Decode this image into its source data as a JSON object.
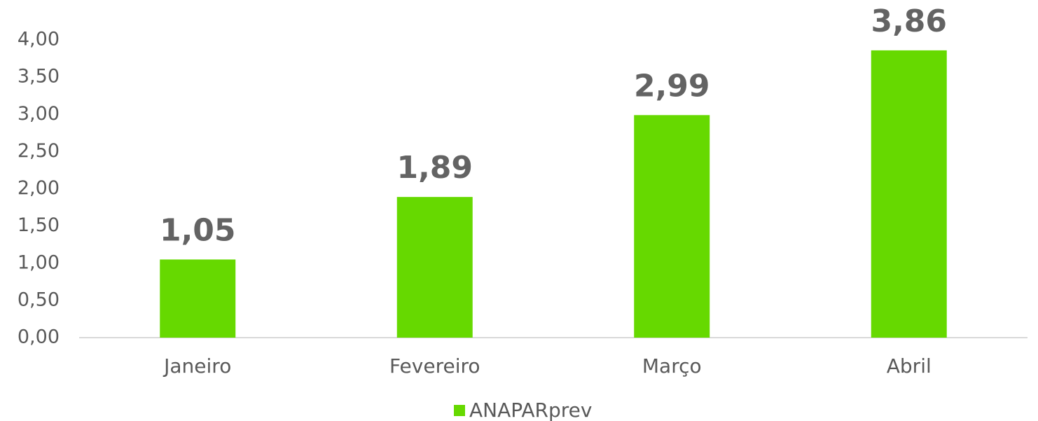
{
  "chart_data": {
    "type": "bar",
    "categories": [
      "Janeiro",
      "Fevereiro",
      "Março",
      "Abril"
    ],
    "series": [
      {
        "name": "ANAPARprev",
        "color": "#66d900",
        "values": [
          1.05,
          1.89,
          2.99,
          3.86
        ],
        "value_labels": [
          "1,05",
          "1,89",
          "2,99",
          "3,86"
        ]
      }
    ],
    "ylim": [
      0,
      4
    ],
    "yticks": [
      {
        "value": 0,
        "label": "0,00"
      },
      {
        "value": 0.5,
        "label": "0,50"
      },
      {
        "value": 1,
        "label": "1,00"
      },
      {
        "value": 1.5,
        "label": "1,50"
      },
      {
        "value": 2,
        "label": "2,00"
      },
      {
        "value": 2.5,
        "label": "2,50"
      },
      {
        "value": 3,
        "label": "3,00"
      },
      {
        "value": 3.5,
        "label": "3,50"
      },
      {
        "value": 4,
        "label": "4,00"
      }
    ],
    "grid": false,
    "legend": "bottom"
  }
}
